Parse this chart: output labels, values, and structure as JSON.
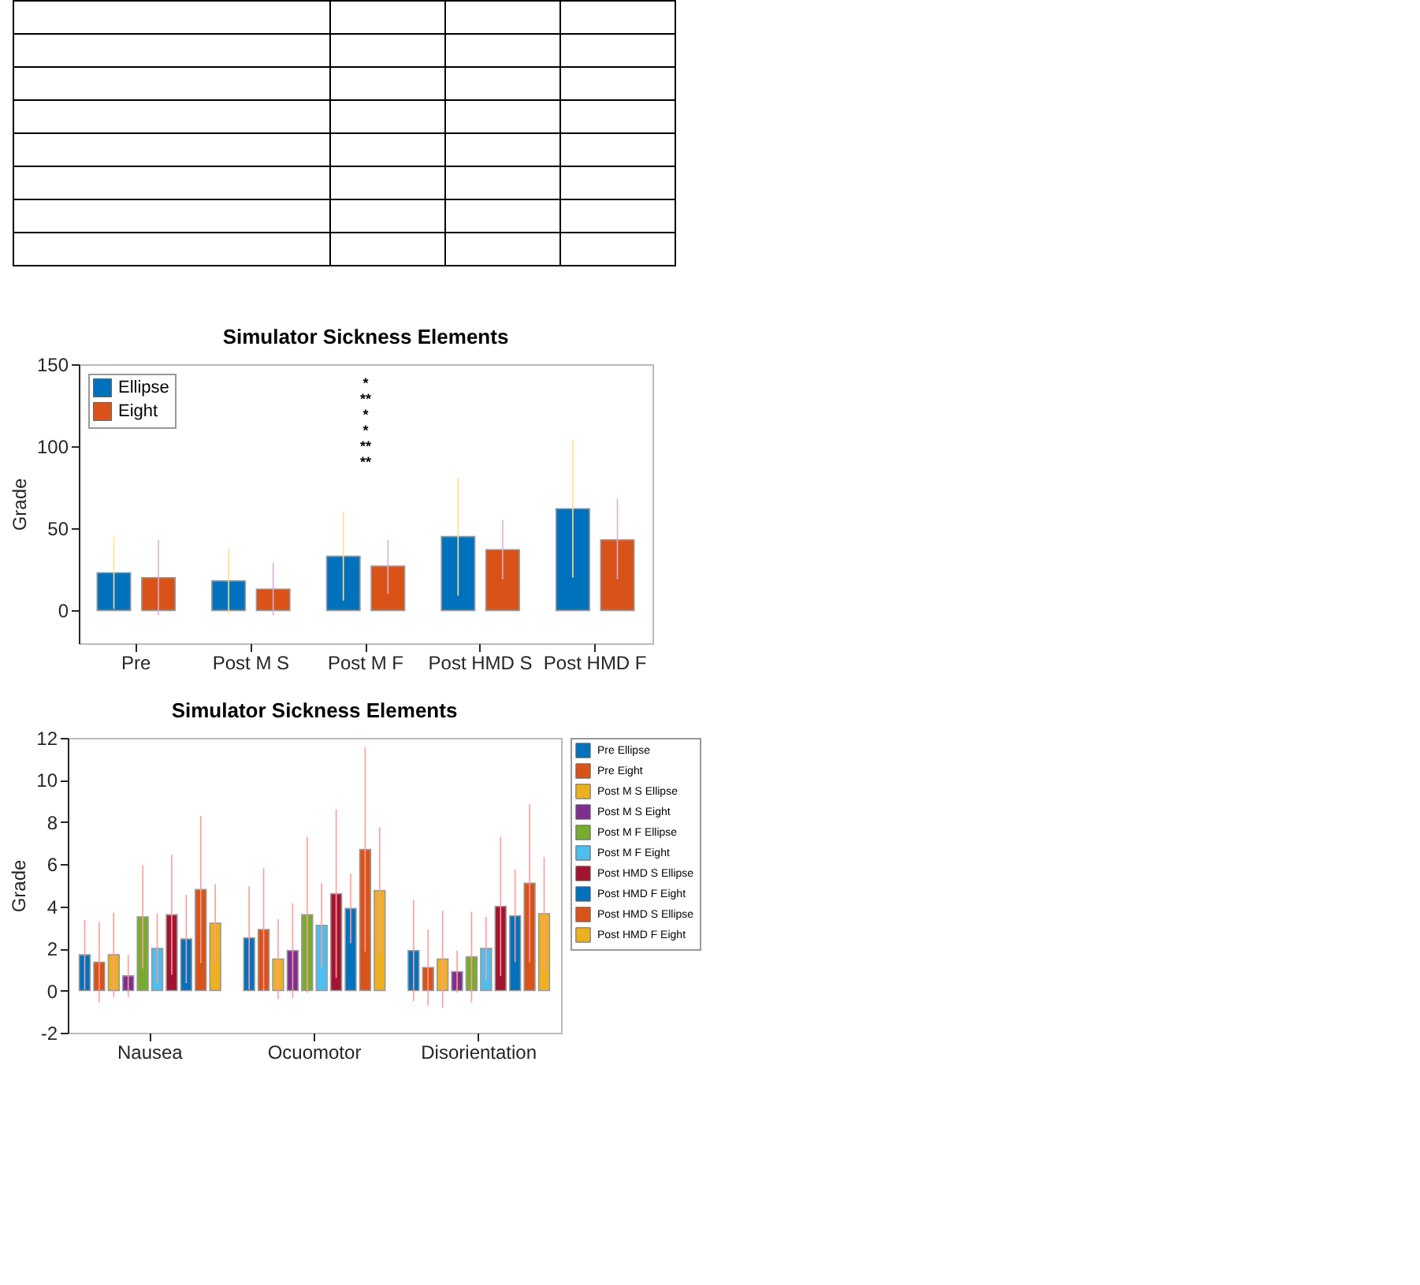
{
  "chart_data": [
    {
      "type": "bar",
      "title": "Simulator Sickness Elements",
      "ylabel": "Grade",
      "categories": [
        "Pre",
        "Post M S",
        "Post M F",
        "Post HMD S",
        "Post HMD F"
      ],
      "series": [
        {
          "name": "Ellipse",
          "color": "#0072bd",
          "values": [
            23,
            18,
            33,
            45,
            62
          ],
          "errors": [
            22,
            20,
            27,
            36,
            42
          ]
        },
        {
          "name": "Eight",
          "color": "#d95319",
          "values": [
            20,
            13,
            27,
            37,
            43
          ],
          "errors": [
            23,
            16,
            [
              10,
              43
            ],
            18,
            [
              19,
              68
            ]
          ]
        }
      ],
      "ylim": [
        -20,
        150
      ],
      "yticks": [
        0,
        50,
        100,
        150
      ],
      "legend": "top left",
      "annotations": [
        "*",
        "**",
        "*",
        "*",
        "**",
        "**"
      ]
    },
    {
      "type": "bar",
      "title": "Simulator Sickness Elements",
      "ylabel": "Grade",
      "categories": [
        "Nausea",
        "Ocuomotor",
        "Disorientation"
      ],
      "series": [
        {
          "name": "Pre Ellipse",
          "color": "#0072bd",
          "values": [
            1.7,
            2.5,
            1.9
          ],
          "errors": [
            1.65,
            2.45,
            2.4
          ]
        },
        {
          "name": "Pre Eight",
          "color": "#d95319",
          "values": [
            1.35,
            2.9,
            1.1
          ],
          "errors": [
            1.9,
            2.9,
            1.8
          ]
        },
        {
          "name": "Post M S Ellipse",
          "color": "#edb120",
          "values": [
            1.7,
            1.5,
            1.5
          ],
          "errors": [
            2.0,
            1.9,
            2.3
          ]
        },
        {
          "name": "Post M S Eight",
          "color": "#7e2f8e",
          "values": [
            0.7,
            1.9,
            0.9
          ],
          "errors": [
            1.0,
            2.25,
            1.0
          ]
        },
        {
          "name": "Post M F Ellipse",
          "color": "#77ac30",
          "values": [
            3.5,
            3.6,
            1.6
          ],
          "errors": [
            2.45,
            3.7,
            2.15
          ]
        },
        {
          "name": "Post M F Eight",
          "color": "#4dbeee",
          "values": [
            2.0,
            3.1,
            2.0
          ],
          "errors": [
            1.65,
            2.0,
            1.5
          ]
        },
        {
          "name": "Post HMD S Ellipse",
          "color": "#a2142f",
          "values": [
            3.6,
            4.6,
            4.0
          ],
          "errors": [
            2.85,
            4.0,
            3.3
          ]
        },
        {
          "name": "Post HMD F Eight",
          "color": "#0072bd",
          "values": [
            2.45,
            3.9,
            3.55
          ],
          "errors": [
            2.1,
            1.65,
            2.2
          ]
        },
        {
          "name": "Post HMD S Ellipse",
          "color": "#d95319",
          "values": [
            4.8,
            6.7,
            5.1
          ],
          "errors": [
            3.5,
            4.85,
            3.75
          ]
        },
        {
          "name": "Post HMD F Eight",
          "color": "#edb120",
          "values": [
            3.2,
            4.75,
            3.65
          ],
          "errors": [
            1.85,
            3.0,
            2.7
          ]
        }
      ],
      "ylim": [
        -2,
        12
      ],
      "yticks": [
        -2,
        0,
        2,
        4,
        6,
        8,
        10,
        12
      ],
      "legend": "right"
    }
  ]
}
